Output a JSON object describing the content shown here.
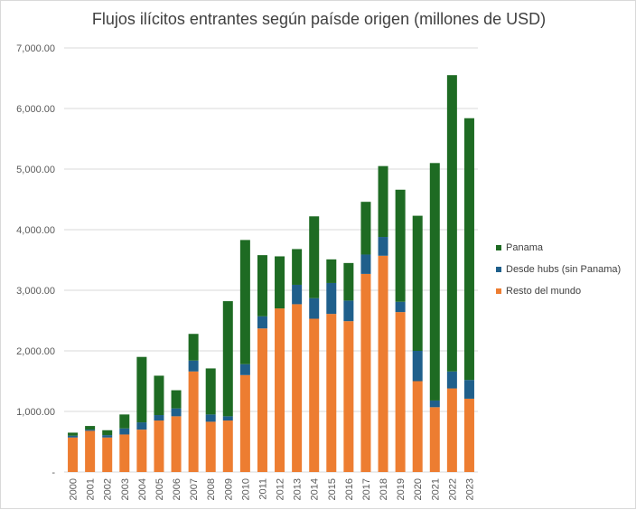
{
  "chart_data": {
    "type": "bar",
    "stacked": true,
    "title": "Flujos ilícitos entrantes según paísde origen (millones de USD)",
    "xlabel": "",
    "ylabel": "",
    "ylim": [
      0,
      7000
    ],
    "yticks": [
      "-",
      "1,000.00",
      "2,000.00",
      "3,000.00",
      "4,000.00",
      "5,000.00",
      "6,000.00",
      "7,000.00"
    ],
    "grid": true,
    "legend_position": "right",
    "categories": [
      "2000",
      "2001",
      "2002",
      "2003",
      "2004",
      "2005",
      "2006",
      "2007",
      "2008",
      "2009",
      "2010",
      "2011",
      "2012",
      "2013",
      "2014",
      "2015",
      "2016",
      "2017",
      "2018",
      "2019",
      "2020",
      "2021",
      "2022",
      "2023"
    ],
    "series": [
      {
        "name": "Resto del mundo",
        "color": "#ED7D31",
        "values": [
          570,
          680,
          570,
          620,
          700,
          850,
          920,
          1660,
          830,
          850,
          1600,
          2370,
          2700,
          2770,
          2530,
          2610,
          2490,
          3270,
          3570,
          2640,
          1500,
          1070,
          1380,
          1210
        ]
      },
      {
        "name": "Desde hubs (sin Panama)",
        "color": "#1F5F8B",
        "values": [
          30,
          20,
          40,
          100,
          120,
          90,
          130,
          180,
          120,
          70,
          180,
          200,
          0,
          320,
          340,
          510,
          340,
          320,
          310,
          170,
          500,
          110,
          280,
          310
        ]
      },
      {
        "name": "Panama",
        "color": "#1E6B23",
        "values": [
          50,
          60,
          80,
          230,
          1080,
          650,
          300,
          440,
          760,
          1900,
          2050,
          1010,
          860,
          590,
          1350,
          390,
          620,
          870,
          1170,
          1850,
          2230,
          3920,
          4890,
          4320
        ]
      }
    ]
  }
}
